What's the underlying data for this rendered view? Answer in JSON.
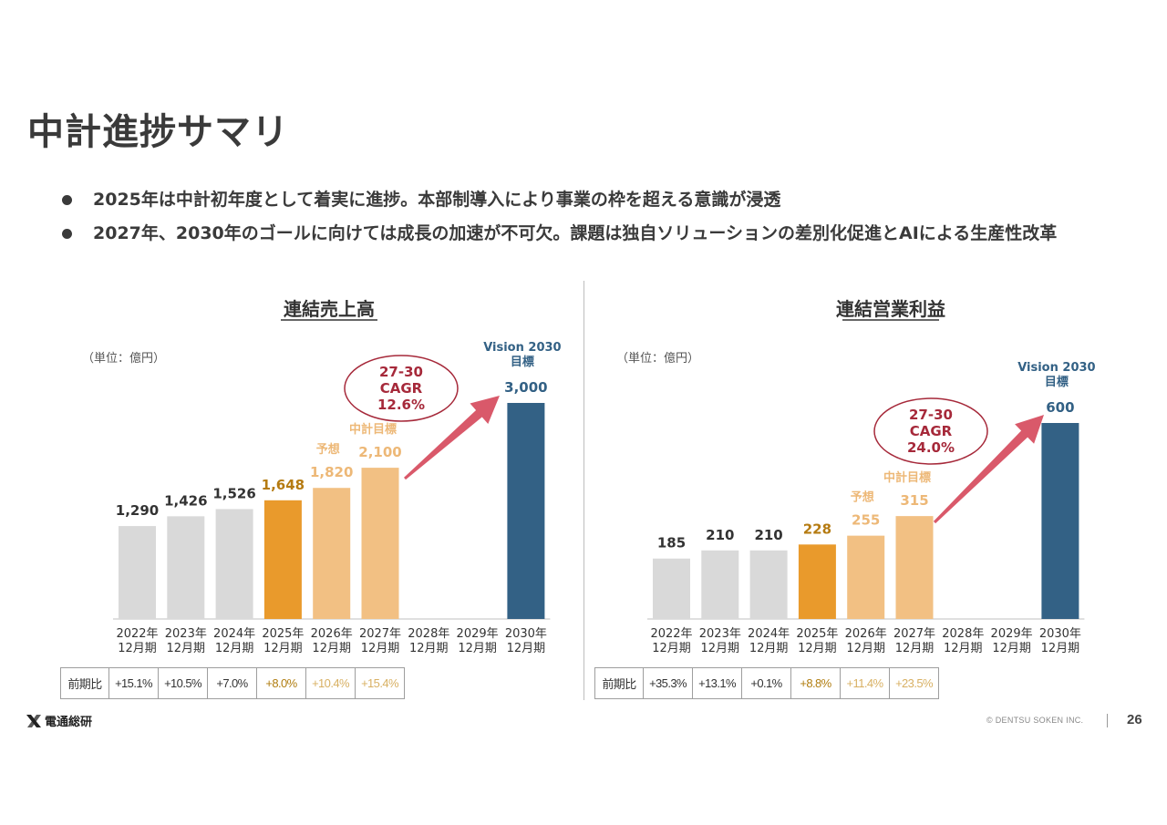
{
  "page_title": "中計進捗サマリ",
  "bullets": [
    "2025年は中計初年度として着実に進捗。本部制導入により事業の枠を超える意識が浸透",
    "2027年、2030年のゴールに向けては成長の加速が不可欠。課題は独自ソリューションの差別化促進とAIによる生産性改革"
  ],
  "colors": {
    "actual": "#d9d9d9",
    "current": "#e99a2c",
    "forecast": "#f2c083",
    "vision": "#336185",
    "arrow": "#d9596a",
    "cagr": "#a6293a"
  },
  "chart_data": [
    {
      "type": "bar",
      "title": "連結売上高",
      "unit": "（単位：億円）",
      "categories": [
        "2022年\n12月期",
        "2023年\n12月期",
        "2024年\n12月期",
        "2025年\n12月期",
        "2026年\n12月期",
        "2027年\n12月期",
        "2028年\n12月期",
        "2029年\n12月期",
        "2030年\n12月期"
      ],
      "values": [
        1290,
        1426,
        1526,
        1648,
        1820,
        2100,
        null,
        null,
        3000
      ],
      "value_labels": [
        "1,290",
        "1,426",
        "1,526",
        "1,648",
        "1,820",
        "2,100",
        "",
        "",
        "3,000"
      ],
      "bar_kinds": [
        "actual",
        "actual",
        "actual",
        "current",
        "forecast",
        "forecast",
        "none",
        "none",
        "vision"
      ],
      "bar_notes": [
        "",
        "",
        "",
        "",
        "予想",
        "中計目標",
        "",
        "",
        ""
      ],
      "vision_label": [
        "Vision 2030",
        "目標"
      ],
      "cagr_label": [
        "27-30",
        "CAGR",
        "12.6%"
      ],
      "ylim": [
        0,
        3000
      ],
      "growth_row_label": "前期比",
      "growth": [
        "+15.1%",
        "+10.5%",
        "+7.0%",
        "+8.0%",
        "+10.4%",
        "+15.4%"
      ]
    },
    {
      "type": "bar",
      "title": "連結営業利益",
      "unit": "（単位：億円）",
      "categories": [
        "2022年\n12月期",
        "2023年\n12月期",
        "2024年\n12月期",
        "2025年\n12月期",
        "2026年\n12月期",
        "2027年\n12月期",
        "2028年\n12月期",
        "2029年\n12月期",
        "2030年\n12月期"
      ],
      "values": [
        185,
        210,
        210,
        228,
        255,
        315,
        null,
        null,
        600
      ],
      "value_labels": [
        "185",
        "210",
        "210",
        "228",
        "255",
        "315",
        "",
        "",
        "600"
      ],
      "bar_kinds": [
        "actual",
        "actual",
        "actual",
        "current",
        "forecast",
        "forecast",
        "none",
        "none",
        "vision"
      ],
      "bar_notes": [
        "",
        "",
        "",
        "",
        "予想",
        "中計目標",
        "",
        "",
        ""
      ],
      "vision_label": [
        "Vision 2030",
        "目標"
      ],
      "cagr_label": [
        "27-30",
        "CAGR",
        "24.0%"
      ],
      "ylim": [
        0,
        600
      ],
      "growth_row_label": "前期比",
      "growth": [
        "+35.3%",
        "+13.1%",
        "+0.1%",
        "+8.8%",
        "+11.4%",
        "+23.5%"
      ]
    }
  ],
  "footer": {
    "logo_text": "電通総研",
    "copyright": "© DENTSU SOKEN INC.",
    "page_number": "26"
  }
}
